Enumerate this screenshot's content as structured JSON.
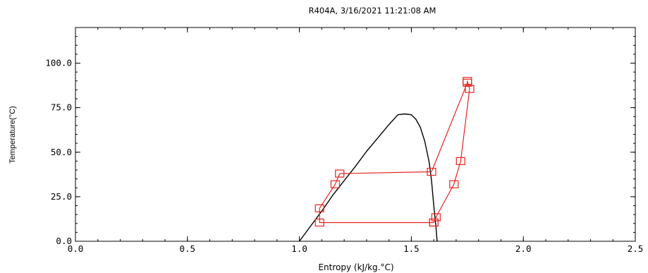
{
  "chart_data": {
    "type": "line",
    "title": "R404A, 3/16/2021 11:21:08 AM",
    "xlabel": "Entropy (kJ/kg.°C)",
    "ylabel": "Temperature(°C)",
    "xlim": [
      0.0,
      2.5
    ],
    "ylim": [
      0.0,
      120.0
    ],
    "x_ticks": [
      "0.0",
      "0.5",
      "1.0",
      "1.5",
      "2.0",
      "2.5"
    ],
    "y_ticks": [
      "0.0",
      "25.0",
      "50.0",
      "75.0",
      "100.0"
    ],
    "grid": false,
    "series": [
      {
        "color": "#000000",
        "markers": false,
        "points": [
          [
            1.0,
            0.0
          ],
          [
            1.05,
            8.5
          ],
          [
            1.1,
            17.0
          ],
          [
            1.15,
            26.0
          ],
          [
            1.2,
            34.0
          ],
          [
            1.25,
            42.0
          ],
          [
            1.3,
            50.5
          ],
          [
            1.35,
            58.0
          ],
          [
            1.4,
            65.5
          ],
          [
            1.44,
            71.0
          ],
          [
            1.47,
            71.5
          ],
          [
            1.5,
            71.0
          ],
          [
            1.52,
            68.5
          ],
          [
            1.54,
            64.0
          ],
          [
            1.56,
            56.0
          ],
          [
            1.58,
            44.0
          ],
          [
            1.59,
            34.0
          ],
          [
            1.6,
            20.0
          ],
          [
            1.61,
            8.0
          ],
          [
            1.615,
            0.0
          ]
        ]
      },
      {
        "color": "#e8231e",
        "markers": true,
        "points": [
          [
            1.6,
            10.5
          ],
          [
            1.09,
            10.5
          ],
          [
            1.09,
            18.5
          ],
          [
            1.16,
            32.0
          ],
          [
            1.18,
            38.0
          ],
          [
            1.59,
            39.0
          ],
          [
            1.75,
            89.0
          ],
          [
            1.75,
            90.0
          ],
          [
            1.76,
            85.5
          ],
          [
            1.72,
            45.0
          ],
          [
            1.69,
            32.0
          ],
          [
            1.61,
            13.5
          ],
          [
            1.6,
            10.5
          ]
        ]
      }
    ]
  }
}
